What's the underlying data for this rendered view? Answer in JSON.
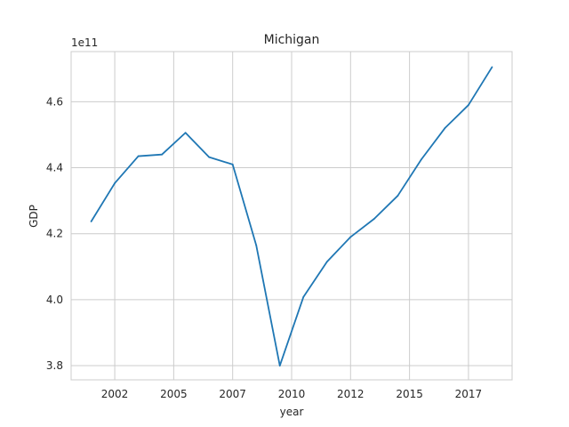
{
  "chart_data": {
    "type": "line",
    "title": "Michigan",
    "xlabel": "year",
    "ylabel": "GDP",
    "y_offset_label": "1e11",
    "x_tick_labels": [
      "2002",
      "2005",
      "2007",
      "2010",
      "2012",
      "2015",
      "2017"
    ],
    "x_tick_values": [
      2002,
      2004.5,
      2007,
      2009.5,
      2012,
      2014.5,
      2017
    ],
    "y_tick_labels": [
      "3.8",
      "4.0",
      "4.2",
      "4.4",
      "4.6"
    ],
    "y_tick_values": [
      3.8,
      4.0,
      4.2,
      4.4,
      4.6
    ],
    "xlim": [
      2000.15,
      2018.85
    ],
    "ylim": [
      3.757,
      4.752
    ],
    "grid": true,
    "color": "#1f77b4",
    "series": [
      {
        "x": [
          2001,
          2002,
          2003,
          2004,
          2005,
          2006,
          2007,
          2008,
          2009,
          2010,
          2011,
          2012,
          2013,
          2014,
          2015,
          2016,
          2017,
          2018
        ],
        "values": [
          4.237,
          4.353,
          4.435,
          4.44,
          4.506,
          4.432,
          4.41,
          4.165,
          3.8,
          4.008,
          4.115,
          4.19,
          4.245,
          4.315,
          4.425,
          4.52,
          4.59,
          4.705
        ]
      }
    ]
  }
}
